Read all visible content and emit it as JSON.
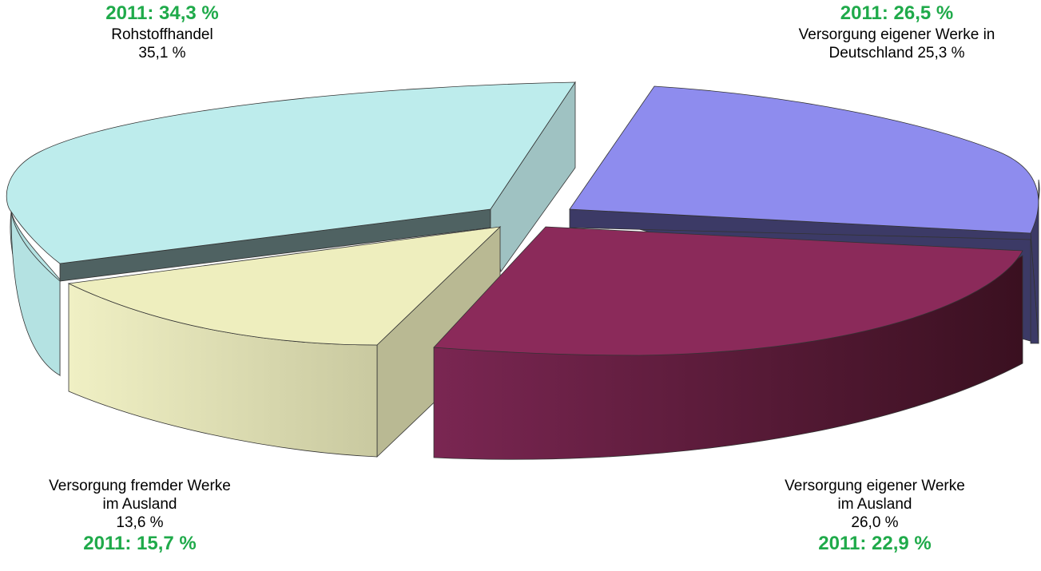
{
  "chart_data": {
    "type": "pie",
    "style": "3d-exploded",
    "slices": [
      {
        "label_lines": [
          "Rohstoffhandel"
        ],
        "value_text": "35,1 %",
        "value": 35.1,
        "compare_text": "2011:  34,3 %",
        "compare_value": 34.3,
        "color": "#bdecec"
      },
      {
        "label_lines": [
          "Versorgung eigener Werke in",
          "Deutschland 25,3 %"
        ],
        "value_text": "",
        "value": 25.3,
        "compare_text": "2011:  26,5 %",
        "compare_value": 26.5,
        "color": "#8e8cee"
      },
      {
        "label_lines": [
          "Versorgung eigener Werke",
          "im Ausland"
        ],
        "value_text": "26,0 %",
        "value": 26.0,
        "compare_text": "2011:  22,9 %",
        "compare_value": 22.9,
        "color": "#8b2a5a"
      },
      {
        "label_lines": [
          "Versorgung fremder Werke",
          "im Ausland"
        ],
        "value_text": "13,6 %",
        "value": 13.6,
        "compare_text": "2011:  15,7 %",
        "compare_value": 15.7,
        "color": "#eeeebe"
      }
    ]
  }
}
